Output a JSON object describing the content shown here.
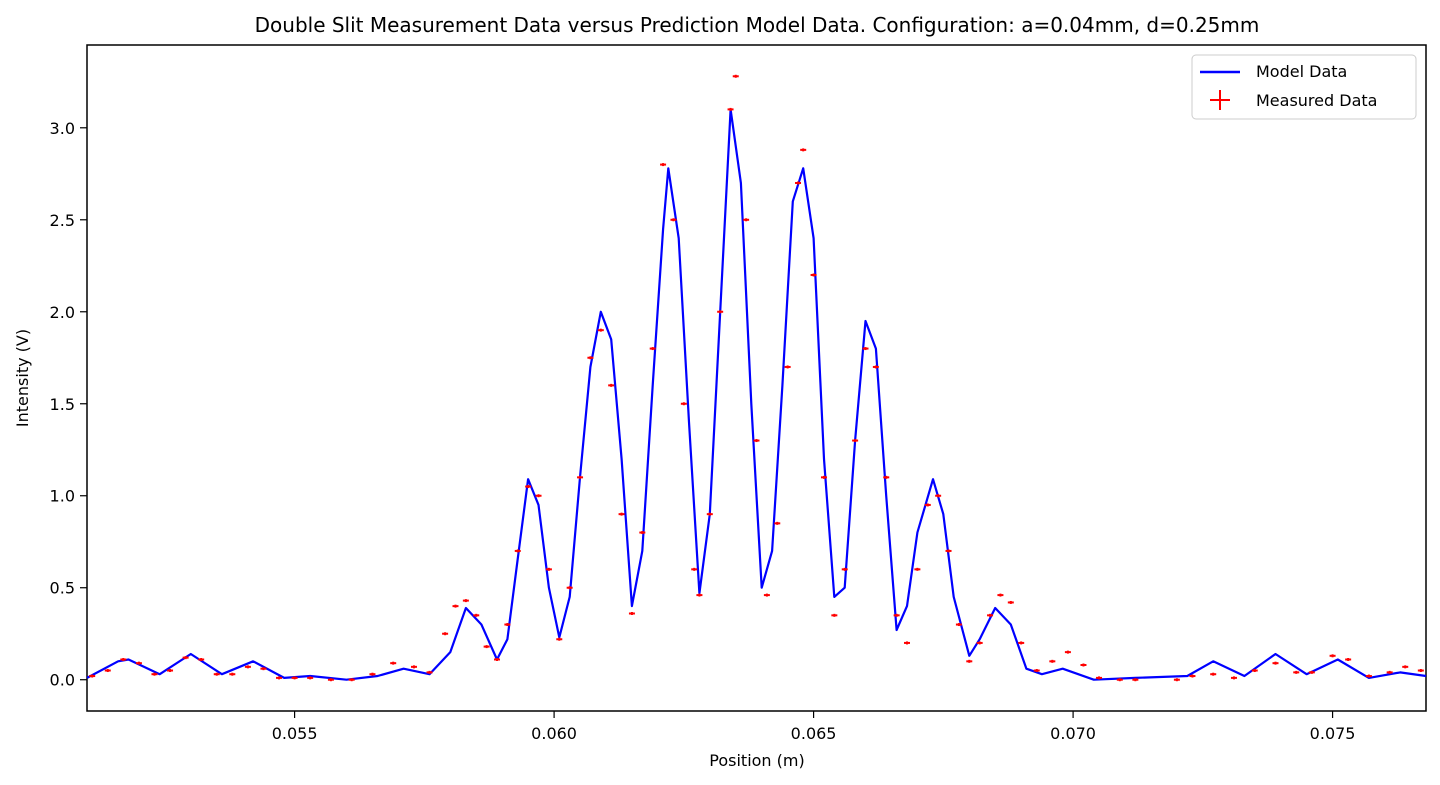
{
  "chart_data": {
    "type": "line",
    "title": "Double Slit Measurement Data versus Prediction Model Data. Configuration: a=0.04mm, d=0.25mm",
    "xlabel": "Position (m)",
    "ylabel": "Intensity (V)",
    "xlim": [
      0.051,
      0.0768
    ],
    "ylim": [
      -0.17,
      3.45
    ],
    "xticks": [
      0.055,
      0.06,
      0.065,
      0.07,
      0.075
    ],
    "xtick_labels": [
      "0.055",
      "0.060",
      "0.065",
      "0.070",
      "0.075"
    ],
    "yticks": [
      0.0,
      0.5,
      1.0,
      1.5,
      2.0,
      2.5,
      3.0
    ],
    "ytick_labels": [
      "0.0",
      "0.5",
      "1.0",
      "1.5",
      "2.0",
      "2.5",
      "3.0"
    ],
    "grid": false,
    "legend_position": "top-right",
    "legend": [
      {
        "label": "Model Data",
        "marker": "line",
        "color": "#0000ff"
      },
      {
        "label": "Measured Data",
        "marker": "plus",
        "color": "#ff0000"
      }
    ],
    "series": [
      {
        "name": "Model Data",
        "kind": "line",
        "color": "#0000ff",
        "points": [
          [
            0.051,
            0.01
          ],
          [
            0.0516,
            0.1
          ],
          [
            0.0518,
            0.11
          ],
          [
            0.0524,
            0.03
          ],
          [
            0.053,
            0.14
          ],
          [
            0.0536,
            0.03
          ],
          [
            0.0542,
            0.1
          ],
          [
            0.0548,
            0.01
          ],
          [
            0.0553,
            0.02
          ],
          [
            0.056,
            0.0
          ],
          [
            0.0566,
            0.02
          ],
          [
            0.0571,
            0.06
          ],
          [
            0.0576,
            0.03
          ],
          [
            0.058,
            0.15
          ],
          [
            0.0583,
            0.39
          ],
          [
            0.0586,
            0.3
          ],
          [
            0.0589,
            0.11
          ],
          [
            0.0591,
            0.22
          ],
          [
            0.0593,
            0.66
          ],
          [
            0.0595,
            1.09
          ],
          [
            0.0597,
            0.95
          ],
          [
            0.0599,
            0.5
          ],
          [
            0.0601,
            0.23
          ],
          [
            0.0603,
            0.45
          ],
          [
            0.0605,
            1.1
          ],
          [
            0.0607,
            1.7
          ],
          [
            0.0609,
            2.0
          ],
          [
            0.0611,
            1.85
          ],
          [
            0.0613,
            1.2
          ],
          [
            0.0615,
            0.4
          ],
          [
            0.0617,
            0.7
          ],
          [
            0.0619,
            1.6
          ],
          [
            0.0621,
            2.45
          ],
          [
            0.0622,
            2.78
          ],
          [
            0.0624,
            2.4
          ],
          [
            0.0626,
            1.4
          ],
          [
            0.0628,
            0.47
          ],
          [
            0.063,
            0.9
          ],
          [
            0.0632,
            2.0
          ],
          [
            0.0634,
            3.1
          ],
          [
            0.0636,
            2.7
          ],
          [
            0.0638,
            1.5
          ],
          [
            0.064,
            0.5
          ],
          [
            0.0642,
            0.7
          ],
          [
            0.0644,
            1.6
          ],
          [
            0.0646,
            2.6
          ],
          [
            0.0648,
            2.78
          ],
          [
            0.065,
            2.4
          ],
          [
            0.0652,
            1.2
          ],
          [
            0.0654,
            0.45
          ],
          [
            0.0656,
            0.5
          ],
          [
            0.0658,
            1.3
          ],
          [
            0.066,
            1.95
          ],
          [
            0.0662,
            1.8
          ],
          [
            0.0664,
            1.0
          ],
          [
            0.0666,
            0.27
          ],
          [
            0.0668,
            0.4
          ],
          [
            0.067,
            0.8
          ],
          [
            0.0673,
            1.09
          ],
          [
            0.0675,
            0.9
          ],
          [
            0.0677,
            0.45
          ],
          [
            0.068,
            0.13
          ],
          [
            0.0682,
            0.22
          ],
          [
            0.0685,
            0.39
          ],
          [
            0.0688,
            0.3
          ],
          [
            0.0691,
            0.06
          ],
          [
            0.0694,
            0.03
          ],
          [
            0.0698,
            0.06
          ],
          [
            0.0704,
            0.0
          ],
          [
            0.0712,
            0.01
          ],
          [
            0.0722,
            0.02
          ],
          [
            0.0727,
            0.1
          ],
          [
            0.0733,
            0.02
          ],
          [
            0.0739,
            0.14
          ],
          [
            0.0745,
            0.03
          ],
          [
            0.0751,
            0.11
          ],
          [
            0.0757,
            0.01
          ],
          [
            0.0763,
            0.04
          ],
          [
            0.0768,
            0.02
          ]
        ]
      },
      {
        "name": "Measured Data",
        "kind": "scatter",
        "marker": "plus",
        "color": "#ff0000",
        "points": [
          [
            0.0511,
            0.02
          ],
          [
            0.0514,
            0.05
          ],
          [
            0.0517,
            0.11
          ],
          [
            0.052,
            0.09
          ],
          [
            0.0523,
            0.03
          ],
          [
            0.0526,
            0.05
          ],
          [
            0.0529,
            0.12
          ],
          [
            0.0532,
            0.11
          ],
          [
            0.0535,
            0.03
          ],
          [
            0.0538,
            0.03
          ],
          [
            0.0541,
            0.07
          ],
          [
            0.0544,
            0.06
          ],
          [
            0.0547,
            0.01
          ],
          [
            0.055,
            0.01
          ],
          [
            0.0553,
            0.01
          ],
          [
            0.0557,
            0.0
          ],
          [
            0.0561,
            0.0
          ],
          [
            0.0565,
            0.03
          ],
          [
            0.0569,
            0.09
          ],
          [
            0.0573,
            0.07
          ],
          [
            0.0576,
            0.04
          ],
          [
            0.0579,
            0.25
          ],
          [
            0.0581,
            0.4
          ],
          [
            0.0583,
            0.43
          ],
          [
            0.0585,
            0.35
          ],
          [
            0.0587,
            0.18
          ],
          [
            0.0589,
            0.11
          ],
          [
            0.0591,
            0.3
          ],
          [
            0.0593,
            0.7
          ],
          [
            0.0595,
            1.05
          ],
          [
            0.0597,
            1.0
          ],
          [
            0.0599,
            0.6
          ],
          [
            0.0601,
            0.22
          ],
          [
            0.0603,
            0.5
          ],
          [
            0.0605,
            1.1
          ],
          [
            0.0607,
            1.75
          ],
          [
            0.0609,
            1.9
          ],
          [
            0.0611,
            1.6
          ],
          [
            0.0613,
            0.9
          ],
          [
            0.0615,
            0.36
          ],
          [
            0.0617,
            0.8
          ],
          [
            0.0619,
            1.8
          ],
          [
            0.0621,
            2.8
          ],
          [
            0.0623,
            2.5
          ],
          [
            0.0625,
            1.5
          ],
          [
            0.0627,
            0.6
          ],
          [
            0.0628,
            0.46
          ],
          [
            0.063,
            0.9
          ],
          [
            0.0632,
            2.0
          ],
          [
            0.0634,
            3.1
          ],
          [
            0.0635,
            3.28
          ],
          [
            0.0637,
            2.5
          ],
          [
            0.0639,
            1.3
          ],
          [
            0.0641,
            0.46
          ],
          [
            0.0643,
            0.85
          ],
          [
            0.0645,
            1.7
          ],
          [
            0.0647,
            2.7
          ],
          [
            0.0648,
            2.88
          ],
          [
            0.065,
            2.2
          ],
          [
            0.0652,
            1.1
          ],
          [
            0.0654,
            0.35
          ],
          [
            0.0656,
            0.6
          ],
          [
            0.0658,
            1.3
          ],
          [
            0.066,
            1.8
          ],
          [
            0.0662,
            1.7
          ],
          [
            0.0664,
            1.1
          ],
          [
            0.0666,
            0.35
          ],
          [
            0.0668,
            0.2
          ],
          [
            0.067,
            0.6
          ],
          [
            0.0672,
            0.95
          ],
          [
            0.0674,
            1.0
          ],
          [
            0.0676,
            0.7
          ],
          [
            0.0678,
            0.3
          ],
          [
            0.068,
            0.1
          ],
          [
            0.0682,
            0.2
          ],
          [
            0.0684,
            0.35
          ],
          [
            0.0686,
            0.46
          ],
          [
            0.0688,
            0.42
          ],
          [
            0.069,
            0.2
          ],
          [
            0.0693,
            0.05
          ],
          [
            0.0696,
            0.1
          ],
          [
            0.0699,
            0.15
          ],
          [
            0.0702,
            0.08
          ],
          [
            0.0705,
            0.01
          ],
          [
            0.0709,
            0.0
          ],
          [
            0.0712,
            0.0
          ],
          [
            0.072,
            0.0
          ],
          [
            0.0723,
            0.02
          ],
          [
            0.0727,
            0.03
          ],
          [
            0.0731,
            0.01
          ],
          [
            0.0735,
            0.05
          ],
          [
            0.0739,
            0.09
          ],
          [
            0.0743,
            0.04
          ],
          [
            0.0746,
            0.04
          ],
          [
            0.075,
            0.13
          ],
          [
            0.0753,
            0.11
          ],
          [
            0.0757,
            0.02
          ],
          [
            0.0761,
            0.04
          ],
          [
            0.0764,
            0.07
          ],
          [
            0.0767,
            0.05
          ]
        ]
      }
    ]
  }
}
